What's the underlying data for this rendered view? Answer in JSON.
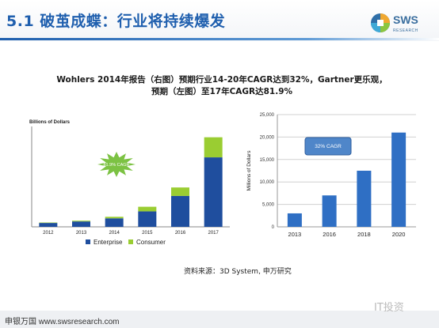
{
  "slide": {
    "title": "5.1 破茧成蝶：行业将持续爆发",
    "logo_text": "SWS",
    "logo_sub": "RESEARCH",
    "headline_line1": "Wohlers 2014年报告（右图）预期行业14-20年CAGR达到32%，Gartner更乐观，",
    "headline_line2": "预期（左图）至17年CAGR达81.9%",
    "source": "资料来源：3D System, 申万研究",
    "footer_url": "申银万国 www.swsresearch.com",
    "watermark": "IT投资"
  },
  "colors": {
    "enterprise": "#1f4e9e",
    "consumer": "#9acd32",
    "bar_blue": "#2f6fc4",
    "starburst": "#7cc243",
    "title_blue": "#1f5fae"
  },
  "chart_data": [
    {
      "type": "bar",
      "stacked": true,
      "ylabel": "Billions of Dollars",
      "categories": [
        "2012",
        "2013",
        "2014",
        "2015",
        "2016",
        "2017"
      ],
      "series": [
        {
          "name": "Enterprise",
          "values": [
            0.25,
            0.35,
            0.55,
            1.0,
            2.0,
            4.5
          ]
        },
        {
          "name": "Consumer",
          "values": [
            0.03,
            0.05,
            0.1,
            0.3,
            0.55,
            1.3
          ]
        }
      ],
      "ylim": [
        0,
        6.5
      ],
      "annotation": "81.9% CAGR",
      "legend": "bottom",
      "grid": false
    },
    {
      "type": "bar",
      "ylabel": "Millions of Dollars",
      "categories": [
        "2013",
        "2016",
        "2018",
        "2020"
      ],
      "values": [
        3000,
        7000,
        12500,
        21000
      ],
      "ylim": [
        0,
        25000
      ],
      "yticks": [
        "0",
        "5,000",
        "10,000",
        "15,000",
        "20,000",
        "25,000"
      ],
      "ytick_values": [
        0,
        5000,
        10000,
        15000,
        20000,
        25000
      ],
      "annotation": "32% CAGR",
      "grid": true
    }
  ]
}
